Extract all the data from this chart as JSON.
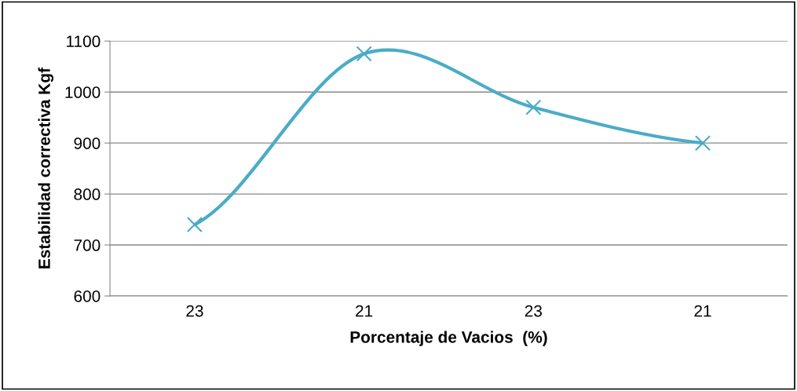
{
  "chart_data": {
    "type": "line",
    "xlabel": "Porcentaje de Vacios  (%)",
    "ylabel": "Estabilidad correctiva Kgf",
    "categories": [
      "23",
      "21",
      "23",
      "21"
    ],
    "series": [
      {
        "color": "#4bacc6",
        "values": [
          740,
          1075,
          970,
          900
        ]
      }
    ],
    "ylim": [
      600,
      1100
    ],
    "yticks": [
      600,
      700,
      800,
      900,
      1000,
      1100
    ],
    "grid": "y",
    "marker": "cross",
    "line_style": "solid",
    "legend": false
  }
}
